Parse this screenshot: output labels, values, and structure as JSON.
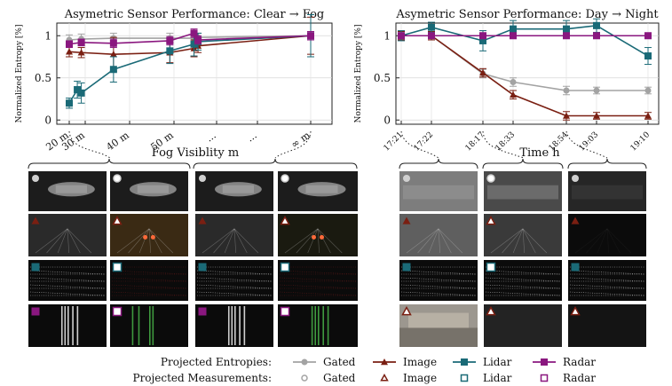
{
  "colors": {
    "gated": "#a3a3a3",
    "image": "#7a1f12",
    "lidar": "#1a6a77",
    "radar": "#8a177f"
  },
  "chart_data": [
    {
      "type": "line",
      "title": "Asymetric Sensor Performance: Clear → Fog",
      "xlabel": "Fog Visiblity m",
      "ylabel": "Normalized Entropy [%]",
      "xtick_labels": [
        "20 m",
        "30 m",
        "40 m",
        "50 m",
        "...",
        "...",
        "∞ m"
      ],
      "ylim": [
        0,
        1.1
      ],
      "yticks": [
        "0",
        "0.5",
        "1"
      ],
      "grid": true,
      "series": [
        {
          "name": "Gated",
          "x": [
            20,
            23,
            31,
            45,
            51,
            52,
            80
          ],
          "y": [
            0.95,
            0.96,
            0.97,
            0.97,
            0.97,
            0.98,
            1.0
          ],
          "err": [
            0.06,
            0.06,
            0.06,
            0.06,
            0.05,
            0.05,
            0.05
          ]
        },
        {
          "name": "Image",
          "x": [
            20,
            23,
            31,
            45,
            51,
            52,
            80
          ],
          "y": [
            0.81,
            0.8,
            0.78,
            0.8,
            0.85,
            0.88,
            1.0
          ],
          "err": [
            0.06,
            0.06,
            0.2,
            0.12,
            0.1,
            0.08,
            0.22
          ]
        },
        {
          "name": "Lidar",
          "x": [
            20,
            22,
            23,
            31,
            45,
            51,
            52,
            80
          ],
          "y": [
            0.2,
            0.36,
            0.32,
            0.6,
            0.82,
            0.9,
            0.93,
            1.0
          ],
          "err": [
            0.06,
            0.1,
            0.12,
            0.15,
            0.15,
            0.14,
            0.1,
            0.25
          ]
        },
        {
          "name": "Radar",
          "x": [
            20,
            23,
            31,
            45,
            51,
            52,
            80
          ],
          "y": [
            0.9,
            0.92,
            0.91,
            0.94,
            1.03,
            0.95,
            1.0
          ],
          "err": [
            0.04,
            0.04,
            0.05,
            0.05,
            0.05,
            0.05,
            0.05
          ]
        }
      ]
    },
    {
      "type": "line",
      "title": "Asymetric Sensor Performance: Day → Night",
      "xlabel": "Time h",
      "ylabel": "Normalized Entropy [%]",
      "categories": [
        "17:21",
        "17:22",
        "18:17",
        "18:33",
        "18:54",
        "19:03",
        "19:10"
      ],
      "ylim": [
        0,
        1.1
      ],
      "yticks": [
        "0",
        "0.5",
        "1"
      ],
      "grid": true,
      "series": [
        {
          "name": "Gated",
          "values": [
            1.0,
            1.0,
            0.55,
            0.45,
            0.35,
            0.35,
            0.35
          ],
          "err": [
            0.05,
            0.05,
            0.05,
            0.05,
            0.05,
            0.04,
            0.04
          ]
        },
        {
          "name": "Image",
          "values": [
            1.0,
            1.0,
            0.56,
            0.3,
            0.05,
            0.05,
            0.05
          ],
          "err": [
            0.05,
            0.05,
            0.05,
            0.05,
            0.05,
            0.04,
            0.04
          ]
        },
        {
          "name": "Lidar",
          "values": [
            1.0,
            1.1,
            0.94,
            1.08,
            1.08,
            1.12,
            0.76
          ],
          "err": [
            0.06,
            0.06,
            0.12,
            0.1,
            0.1,
            0.08,
            0.1
          ]
        },
        {
          "name": "Radar",
          "values": [
            1.0,
            1.0,
            1.0,
            1.0,
            1.0,
            1.0,
            1.0
          ],
          "err": [
            0.03,
            0.03,
            0.03,
            0.03,
            0.03,
            0.03,
            0.03
          ]
        }
      ]
    }
  ],
  "legend": {
    "entropies_label": "Projected Entropies:",
    "measurements_label": "Projected Measurements:",
    "items": [
      "Gated",
      "Image",
      "Lidar",
      "Radar"
    ]
  }
}
